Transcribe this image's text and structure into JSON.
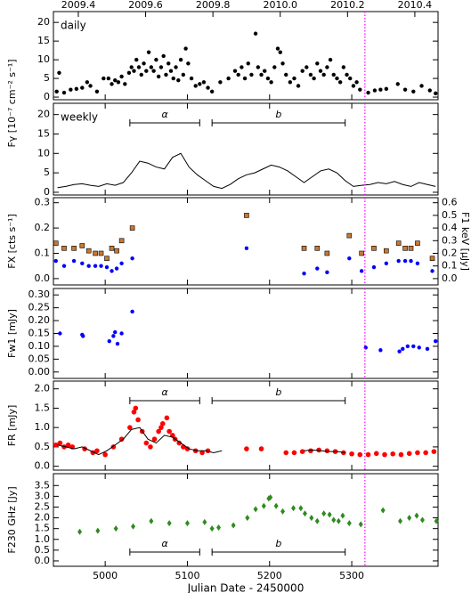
{
  "chart_data": [
    {
      "type": "scatter",
      "label": "daily",
      "ylabel": "Fγ [10⁻⁷ cm⁻² s⁻¹]",
      "xlim": [
        4937,
        5405
      ],
      "ylim": [
        -0.7,
        22.9
      ],
      "yticks": [
        0,
        5,
        10,
        15,
        20
      ],
      "top_xlim": [
        2009.326,
        2010.469
      ],
      "top_xticks": [
        2009.4,
        2009.6,
        2009.8,
        {
          "value": 2010,
          "label": "2010.0"
        },
        2010.2,
        2010.4
      ],
      "series": [
        {
          "marker": "circle",
          "color": "#000000",
          "x": [
            4941,
            4944,
            4950,
            4958,
            4965,
            4972,
            4978,
            4982,
            4990,
            4998,
            5004,
            5008,
            5012,
            5016,
            5020,
            5024,
            5029,
            5032,
            5035,
            5038,
            5041,
            5044,
            5047,
            5050,
            5053,
            5056,
            5059,
            5062,
            5065,
            5068,
            5071,
            5074,
            5077,
            5080,
            5083,
            5086,
            5089,
            5092,
            5095,
            5098,
            5101,
            5105,
            5110,
            5115,
            5120,
            5125,
            5130,
            5140,
            5150,
            5158,
            5162,
            5166,
            5170,
            5174,
            5178,
            5183,
            5186,
            5190,
            5194,
            5198,
            5202,
            5206,
            5210,
            5213,
            5216,
            5220,
            5225,
            5230,
            5235,
            5240,
            5245,
            5250,
            5254,
            5258,
            5262,
            5266,
            5270,
            5274,
            5278,
            5282,
            5286,
            5290,
            5294,
            5298,
            5302,
            5306,
            5310,
            5320,
            5328,
            5335,
            5342,
            5356,
            5365,
            5375,
            5385,
            5395,
            5402
          ],
          "values": [
            1.5,
            6.5,
            1.2,
            2,
            2.2,
            2.5,
            4,
            3,
            1.5,
            5,
            5,
            3.5,
            4.5,
            4,
            5.5,
            3.5,
            6.5,
            8,
            7,
            10,
            8,
            6,
            9,
            7,
            12,
            8,
            7,
            10,
            5.5,
            8,
            11,
            6,
            9,
            7,
            5,
            8,
            4.5,
            10,
            6,
            13,
            9,
            5,
            3,
            3.5,
            4,
            2.5,
            1.5,
            4,
            5,
            7,
            6,
            8,
            5,
            9,
            6,
            17,
            8,
            6,
            7,
            5,
            4,
            8,
            13,
            12,
            9,
            6,
            4,
            5,
            3,
            7,
            8,
            6,
            5,
            9,
            7,
            6,
            8,
            10,
            6,
            5,
            4,
            8,
            6,
            5,
            3,
            4,
            2,
            1.2,
            1.8,
            2,
            2.2,
            3.5,
            2,
            1.5,
            3,
            1.8,
            1
          ]
        }
      ]
    },
    {
      "type": "line",
      "label": "weekly",
      "xlim": [
        4937,
        5405
      ],
      "ylim": [
        -0.7,
        22.9
      ],
      "yticks": [
        0,
        5,
        10,
        15,
        20
      ],
      "periods": [
        {
          "label": "α",
          "xlim": [
            5030,
            5115
          ]
        },
        {
          "label": "b",
          "xlim": [
            5130,
            5292
          ]
        }
      ],
      "period_position": "top",
      "series": [
        {
          "type": "line",
          "color": "#000000",
          "x": [
            4942,
            4952,
            4962,
            4972,
            4982,
            4992,
            5002,
            5012,
            5022,
            5032,
            5042,
            5052,
            5062,
            5072,
            5082,
            5092,
            5102,
            5112,
            5122,
            5132,
            5142,
            5152,
            5162,
            5172,
            5182,
            5192,
            5202,
            5212,
            5222,
            5232,
            5242,
            5252,
            5262,
            5272,
            5282,
            5292,
            5302,
            5312,
            5322,
            5332,
            5342,
            5352,
            5362,
            5372,
            5382,
            5392,
            5402
          ],
          "values": [
            1.2,
            1.5,
            2,
            2.2,
            1.8,
            1.5,
            2.2,
            1.8,
            2.5,
            5,
            8,
            7.5,
            6.5,
            6,
            9,
            10,
            6.5,
            4.5,
            3,
            1.5,
            1,
            2,
            3.5,
            4.5,
            5,
            6,
            7,
            6.5,
            5.5,
            4,
            2.5,
            4,
            5.5,
            6,
            5,
            3,
            1.5,
            1.8,
            2,
            2.5,
            2.2,
            2.8,
            2,
            1.5,
            2.5,
            2,
            1.5
          ]
        }
      ]
    },
    {
      "type": "scatter",
      "ylabel": "FX [cts s⁻¹]",
      "y2label": "F1 keV [μJy]",
      "xlim": [
        4937,
        5405
      ],
      "ylim": [
        -0.025,
        0.32
      ],
      "yticks": [
        {
          "value": 0,
          "label": "0.0"
        },
        0.1,
        0.2,
        0.3
      ],
      "y2lim": [
        -0.05,
        0.64
      ],
      "y2ticks": [
        {
          "value": 0,
          "label": "0.0"
        },
        0.1,
        0.2,
        0.3,
        0.4,
        0.5,
        0.6
      ],
      "series": [
        {
          "marker": "square",
          "color": "#c87832",
          "x": [
            4940,
            4950,
            4962,
            4972,
            4980,
            4988,
            4995,
            5002,
            5008,
            5014,
            5020,
            5033,
            5172,
            5242,
            5258,
            5270,
            5297,
            5312,
            5327,
            5342,
            5357,
            5365,
            5372,
            5380,
            5398
          ],
          "values": [
            0.14,
            0.12,
            0.12,
            0.13,
            0.11,
            0.1,
            0.1,
            0.08,
            0.12,
            0.11,
            0.15,
            0.2,
            0.25,
            0.12,
            0.12,
            0.1,
            0.17,
            0.1,
            0.12,
            0.11,
            0.14,
            0.12,
            0.12,
            0.14,
            0.08
          ]
        },
        {
          "marker": "circle",
          "color": "#0000ff",
          "axis": "y2",
          "x": [
            4940,
            4950,
            4962,
            4972,
            4980,
            4988,
            4995,
            5002,
            5008,
            5014,
            5020,
            5033,
            5172,
            5242,
            5258,
            5270,
            5297,
            5312,
            5327,
            5342,
            5357,
            5365,
            5372,
            5380,
            5398
          ],
          "values": [
            0.14,
            0.1,
            0.14,
            0.12,
            0.1,
            0.1,
            0.1,
            0.09,
            0.06,
            0.08,
            0.12,
            0.16,
            0.24,
            0.04,
            0.08,
            0.05,
            0.16,
            0.06,
            0.09,
            0.12,
            0.14,
            0.14,
            0.14,
            0.12,
            0.06
          ]
        }
      ]
    },
    {
      "type": "scatter",
      "ylabel": "Fw1 [mJy]",
      "xlim": [
        4937,
        5405
      ],
      "ylim": [
        -0.025,
        0.325
      ],
      "yticks": [
        {
          "value": 0,
          "label": "0.00"
        },
        0.05,
        {
          "value": 0.1,
          "label": "0.10"
        },
        0.15,
        {
          "value": 0.2,
          "label": "0.20"
        },
        0.25,
        {
          "value": 0.3,
          "label": "0.30"
        }
      ],
      "series": [
        {
          "marker": "circle",
          "color": "#0000ff",
          "x": [
            4945,
            4972,
            4973,
            5005,
            5010,
            5012,
            5015,
            5020,
            5033,
            5317,
            5335,
            5358,
            5362,
            5368,
            5375,
            5382,
            5392,
            5402
          ],
          "values": [
            0.15,
            0.145,
            0.14,
            0.12,
            0.14,
            0.155,
            0.11,
            0.15,
            0.235,
            0.095,
            0.085,
            0.08,
            0.09,
            0.1,
            0.1,
            0.095,
            0.09,
            0.12
          ]
        }
      ]
    },
    {
      "type": "scatter",
      "ylabel": "FR [mJy]",
      "xlim": [
        4937,
        5405
      ],
      "ylim": [
        -0.1,
        2.2
      ],
      "yticks": [
        {
          "value": 0,
          "label": "0.0"
        },
        0.5,
        {
          "value": 1,
          "label": "1.0"
        },
        1.5,
        {
          "value": 2,
          "label": "2.0"
        }
      ],
      "periods": [
        {
          "label": "α",
          "xlim": [
            5030,
            5115
          ]
        },
        {
          "label": "b",
          "xlim": [
            5130,
            5292
          ]
        }
      ],
      "period_position": "top",
      "series": [
        {
          "marker": "dot",
          "color": "#ff0000",
          "x": [
            4940,
            4945,
            4950,
            4955,
            4960,
            4975,
            4985,
            4990,
            5000,
            5010,
            5020,
            5030,
            5035,
            5037,
            5040,
            5045,
            5050,
            5055,
            5060,
            5065,
            5068,
            5070,
            5075,
            5078,
            5082,
            5085,
            5090,
            5095,
            5100,
            5110,
            5118,
            5125,
            5172,
            5190,
            5220,
            5230,
            5240,
            5250,
            5260,
            5270,
            5280,
            5290,
            5300,
            5310,
            5320,
            5330,
            5340,
            5350,
            5360,
            5370,
            5380,
            5390,
            5400
          ],
          "values": [
            0.55,
            0.6,
            0.5,
            0.55,
            0.5,
            0.45,
            0.35,
            0.4,
            0.3,
            0.5,
            0.7,
            1.0,
            1.4,
            1.5,
            1.2,
            0.9,
            0.6,
            0.5,
            0.7,
            0.9,
            1.0,
            1.1,
            1.25,
            0.9,
            0.8,
            0.7,
            0.6,
            0.5,
            0.45,
            0.4,
            0.35,
            0.4,
            0.45,
            0.45,
            0.35,
            0.35,
            0.38,
            0.4,
            0.42,
            0.4,
            0.38,
            0.35,
            0.32,
            0.3,
            0.3,
            0.33,
            0.3,
            0.32,
            0.3,
            0.33,
            0.35,
            0.35,
            0.38
          ]
        },
        {
          "type": "line",
          "color": "#000000",
          "x": [
            4942,
            4952,
            4962,
            4972,
            4982,
            4992,
            5002,
            5012,
            5022,
            5032,
            5042,
            5052,
            5062,
            5072,
            5082,
            5092,
            5102,
            5112,
            5122,
            5132,
            5142,
            5192,
            5242,
            5252,
            5262,
            5272,
            5282,
            5292
          ],
          "values": [
            0.55,
            0.5,
            0.45,
            0.5,
            0.4,
            0.3,
            0.4,
            0.55,
            0.7,
            0.95,
            1.0,
            0.7,
            0.6,
            0.8,
            0.75,
            0.6,
            0.45,
            0.4,
            0.4,
            0.35,
            0.4,
            null,
            0.4,
            0.42,
            0.4,
            0.38,
            0.38,
            0.35
          ]
        }
      ]
    },
    {
      "type": "scatter",
      "ylabel": "F230 GHz [Jy]",
      "xlabel": "Julian Date - 2450000",
      "xlim": [
        4937,
        5405
      ],
      "xticks": [
        5000,
        5100,
        5200,
        5300
      ],
      "ylim": [
        -0.25,
        4.05
      ],
      "yticks": [
        {
          "value": 0,
          "label": "0.0"
        },
        0.5,
        {
          "value": 1,
          "label": "1.0"
        },
        1.5,
        {
          "value": 2,
          "label": "2.0"
        },
        2.5,
        {
          "value": 3,
          "label": "3.0"
        },
        3.5
      ],
      "periods": [
        {
          "label": "α",
          "xlim": [
            5030,
            5115
          ]
        },
        {
          "label": "b",
          "xlim": [
            5130,
            5292
          ]
        }
      ],
      "period_position": "bottom",
      "series": [
        {
          "marker": "diamond",
          "color": "#2e8b1e",
          "x": [
            4969,
            4991,
            5013,
            5034,
            5056,
            5078,
            5100,
            5121,
            5130,
            5138,
            5156,
            5173,
            5183,
            5193,
            5199,
            5201,
            5208,
            5216,
            5229,
            5238,
            5243,
            5251,
            5258,
            5266,
            5273,
            5278,
            5284,
            5289,
            5297,
            5311,
            5338,
            5359,
            5370,
            5379,
            5386,
            5403
          ],
          "values": [
            1.35,
            1.4,
            1.5,
            1.6,
            1.85,
            1.75,
            1.75,
            1.8,
            1.5,
            1.55,
            1.65,
            2.0,
            2.4,
            2.55,
            2.9,
            2.95,
            2.55,
            2.3,
            2.45,
            2.45,
            2.2,
            2.0,
            1.85,
            2.2,
            2.15,
            1.9,
            1.85,
            2.1,
            1.75,
            1.7,
            2.35,
            1.85,
            2.0,
            2.1,
            1.9,
            1.85
          ]
        }
      ]
    }
  ],
  "flare_line": {
    "x": 5316,
    "color": "#ff00ff"
  }
}
